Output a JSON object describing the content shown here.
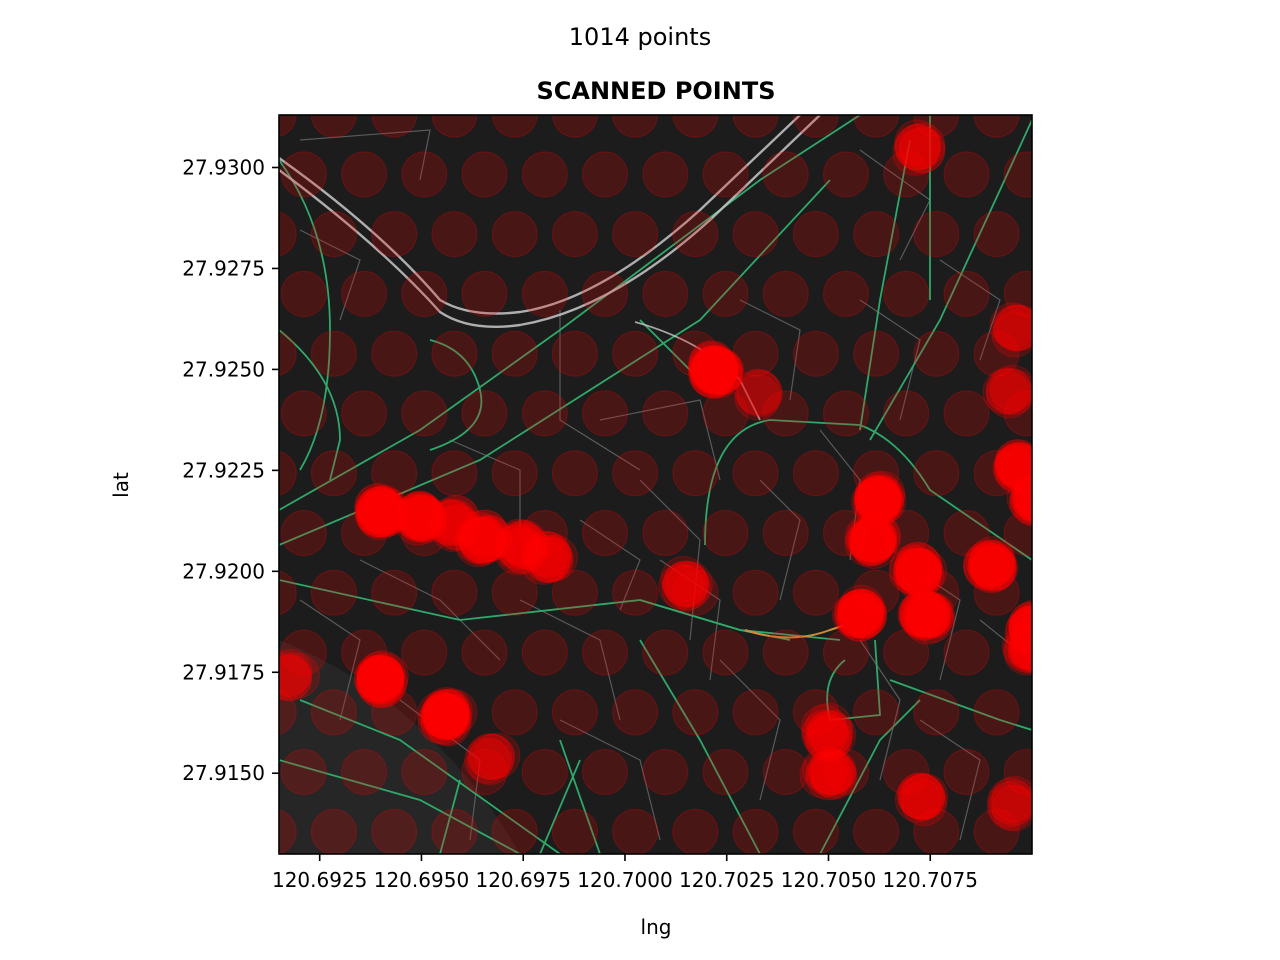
{
  "figure": {
    "suptitle": "1014 points"
  },
  "chart_data": {
    "type": "scatter",
    "title": "SCANNED POINTS",
    "xlabel": "lng",
    "ylabel": "lat",
    "xlim": [
      120.6915,
      120.71
    ],
    "ylim": [
      27.913,
      27.9313
    ],
    "xticks": [
      120.6925,
      120.695,
      120.6975,
      120.7,
      120.7025,
      120.705,
      120.7075
    ],
    "xtick_labels": [
      "120.6925",
      "120.6950",
      "120.6975",
      "120.7000",
      "120.7025",
      "120.7050",
      "120.7075"
    ],
    "yticks": [
      27.915,
      27.9175,
      27.92,
      27.9225,
      27.925,
      27.9275,
      27.93
    ],
    "ytick_labels": [
      "27.9150",
      "27.9175",
      "27.9200",
      "27.9225",
      "27.9250",
      "27.9275",
      "27.9300"
    ],
    "grid": false,
    "basemap": "dark street map",
    "point_color": "#ff0000",
    "point_alpha": 0.2,
    "colors": {
      "map_background": "#1c1c1c",
      "major_road": "#2fa86a",
      "expressway": "#c8c8c8",
      "street": "#5a5a5a",
      "arterial_highlight": "#d08a3a",
      "water": "#262626"
    },
    "grid_points": {
      "lng_start": 120.69137,
      "lng_step": 0.00148,
      "lat_start": 27.91355,
      "lat_step": 0.00148,
      "cols": 13,
      "rows": 13
    },
    "hotspots": [
      {
        "lng": 120.694,
        "lat": 27.9215,
        "n": 24
      },
      {
        "lng": 120.695,
        "lat": 27.92135,
        "n": 16
      },
      {
        "lng": 120.69575,
        "lat": 27.9212,
        "n": 10
      },
      {
        "lng": 120.6965,
        "lat": 27.9208,
        "n": 14
      },
      {
        "lng": 120.6974,
        "lat": 27.9206,
        "n": 12
      },
      {
        "lng": 120.6981,
        "lat": 27.92035,
        "n": 10
      },
      {
        "lng": 120.694,
        "lat": 27.91735,
        "n": 22
      },
      {
        "lng": 120.6956,
        "lat": 27.9164,
        "n": 22
      },
      {
        "lng": 120.6918,
        "lat": 27.91745,
        "n": 6
      },
      {
        "lng": 120.7022,
        "lat": 27.925,
        "n": 28
      },
      {
        "lng": 120.7015,
        "lat": 27.9197,
        "n": 8
      },
      {
        "lng": 120.7062,
        "lat": 27.9218,
        "n": 20
      },
      {
        "lng": 120.7061,
        "lat": 27.9208,
        "n": 18
      },
      {
        "lng": 120.7072,
        "lat": 27.92,
        "n": 18
      },
      {
        "lng": 120.709,
        "lat": 27.9202,
        "n": 16
      },
      {
        "lng": 120.7097,
        "lat": 27.9226,
        "n": 14
      },
      {
        "lng": 120.7101,
        "lat": 27.9218,
        "n": 18
      },
      {
        "lng": 120.7058,
        "lat": 27.919,
        "n": 18
      },
      {
        "lng": 120.7074,
        "lat": 27.9189,
        "n": 20
      },
      {
        "lng": 120.71,
        "lat": 27.9186,
        "n": 18
      },
      {
        "lng": 120.71,
        "lat": 27.9181,
        "n": 12
      },
      {
        "lng": 120.7072,
        "lat": 27.9305,
        "n": 8
      },
      {
        "lng": 120.7096,
        "lat": 27.926,
        "n": 6
      },
      {
        "lng": 120.7095,
        "lat": 27.9245,
        "n": 6
      },
      {
        "lng": 120.705,
        "lat": 27.916,
        "n": 10
      },
      {
        "lng": 120.705,
        "lat": 27.915,
        "n": 10
      },
      {
        "lng": 120.7073,
        "lat": 27.9144,
        "n": 8
      },
      {
        "lng": 120.7095,
        "lat": 27.9142,
        "n": 6
      },
      {
        "lng": 120.6967,
        "lat": 27.9154,
        "n": 6
      },
      {
        "lng": 120.7033,
        "lat": 27.9244,
        "n": 4
      }
    ]
  }
}
